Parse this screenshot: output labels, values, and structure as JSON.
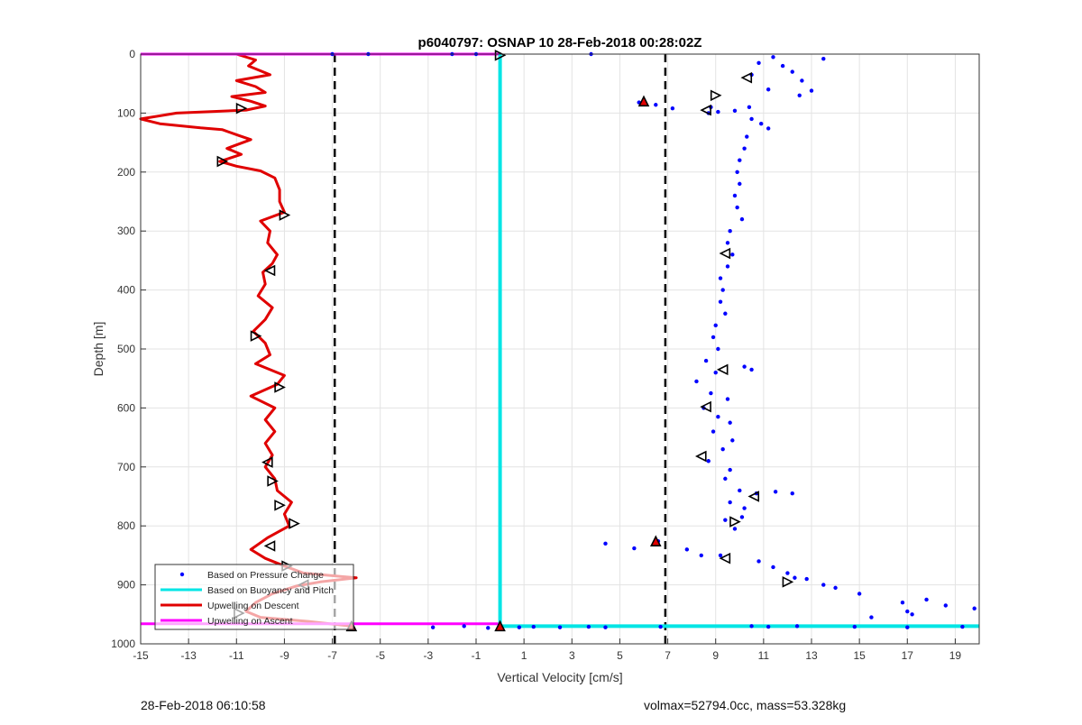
{
  "chart_data": {
    "type": "scatter",
    "title": "p6040797: OSNAP 10 28-Feb-2018 00:28:02Z",
    "xlabel": "Vertical Velocity [cm/s]",
    "ylabel": "Depth [m]",
    "xlim": [
      -15,
      20
    ],
    "ylim": [
      0,
      1000
    ],
    "y_reversed": true,
    "grid": true,
    "x_ticks": [
      "-15",
      "-13",
      "-11",
      "-9",
      "-7",
      "-5",
      "-3",
      "-1",
      "1",
      "3",
      "5",
      "7",
      "9",
      "11",
      "13",
      "15",
      "17",
      "19"
    ],
    "y_ticks": [
      "0",
      "100",
      "200",
      "300",
      "400",
      "500",
      "600",
      "700",
      "800",
      "900",
      "1000"
    ],
    "legend_placement": "bottom-left",
    "legend": [
      {
        "label": "Based on Pressure Change",
        "color": "#0000ff",
        "style": "dots"
      },
      {
        "label": "Based on Buoyancy and Pitch",
        "color": "#00e5e5",
        "style": "line"
      },
      {
        "label": "Upwelling on Descent",
        "color": "#e00000",
        "style": "line"
      },
      {
        "label": "Upwelling on Ascent",
        "color": "#ff00ff",
        "style": "line"
      }
    ],
    "reference_lines_x": [
      -6.9,
      6.9
    ],
    "series": [
      {
        "name": "Based on Pressure Change",
        "color": "#0000ff",
        "points": [
          [
            3.8,
            0
          ],
          [
            11.4,
            5
          ],
          [
            13.5,
            8
          ],
          [
            10.8,
            15
          ],
          [
            11.8,
            20
          ],
          [
            12.2,
            30
          ],
          [
            10.5,
            35
          ],
          [
            12.6,
            45
          ],
          [
            11.2,
            60
          ],
          [
            12.5,
            70
          ],
          [
            13.0,
            62
          ],
          [
            5.8,
            82
          ],
          [
            6.5,
            86
          ],
          [
            7.2,
            92
          ],
          [
            8.8,
            90
          ],
          [
            9.1,
            98
          ],
          [
            9.8,
            96
          ],
          [
            10.4,
            90
          ],
          [
            8.7,
            100
          ],
          [
            10.5,
            110
          ],
          [
            10.9,
            118
          ],
          [
            11.2,
            126
          ],
          [
            10.3,
            140
          ],
          [
            10.2,
            160
          ],
          [
            10.0,
            180
          ],
          [
            9.9,
            200
          ],
          [
            10.0,
            220
          ],
          [
            9.8,
            240
          ],
          [
            9.9,
            260
          ],
          [
            10.1,
            280
          ],
          [
            9.6,
            300
          ],
          [
            9.5,
            320
          ],
          [
            9.7,
            340
          ],
          [
            9.5,
            360
          ],
          [
            9.2,
            380
          ],
          [
            9.3,
            400
          ],
          [
            9.2,
            420
          ],
          [
            9.4,
            440
          ],
          [
            9.0,
            460
          ],
          [
            8.9,
            480
          ],
          [
            9.1,
            500
          ],
          [
            8.6,
            520
          ],
          [
            9.0,
            540
          ],
          [
            10.2,
            530
          ],
          [
            10.5,
            535
          ],
          [
            8.2,
            555
          ],
          [
            8.8,
            575
          ],
          [
            9.5,
            585
          ],
          [
            8.5,
            600
          ],
          [
            9.1,
            615
          ],
          [
            9.6,
            625
          ],
          [
            8.9,
            640
          ],
          [
            9.7,
            655
          ],
          [
            9.3,
            670
          ],
          [
            8.7,
            690
          ],
          [
            9.6,
            705
          ],
          [
            9.4,
            720
          ],
          [
            10.0,
            740
          ],
          [
            10.7,
            745
          ],
          [
            11.5,
            742
          ],
          [
            12.2,
            745
          ],
          [
            9.6,
            760
          ],
          [
            10.2,
            770
          ],
          [
            10.1,
            785
          ],
          [
            9.4,
            790
          ],
          [
            9.8,
            805
          ],
          [
            4.4,
            830
          ],
          [
            5.6,
            838
          ],
          [
            6.6,
            826
          ],
          [
            7.8,
            840
          ],
          [
            8.4,
            850
          ],
          [
            9.2,
            850
          ],
          [
            10.8,
            860
          ],
          [
            11.4,
            870
          ],
          [
            12.0,
            880
          ],
          [
            12.3,
            888
          ],
          [
            12.8,
            890
          ],
          [
            13.5,
            900
          ],
          [
            14.0,
            905
          ],
          [
            15.0,
            915
          ],
          [
            16.8,
            930
          ],
          [
            17.0,
            945
          ],
          [
            17.8,
            925
          ],
          [
            18.6,
            935
          ],
          [
            19.8,
            940
          ],
          [
            15.5,
            955
          ],
          [
            17.2,
            950
          ],
          [
            -2.8,
            972
          ],
          [
            -1.5,
            970
          ],
          [
            -0.5,
            973
          ],
          [
            0.8,
            972
          ],
          [
            1.4,
            971
          ],
          [
            2.5,
            972
          ],
          [
            3.7,
            971
          ],
          [
            4.4,
            972
          ],
          [
            6.7,
            971
          ],
          [
            10.5,
            970
          ],
          [
            11.2,
            971
          ],
          [
            12.4,
            970
          ],
          [
            14.8,
            971
          ],
          [
            17.0,
            972
          ],
          [
            19.3,
            971
          ],
          [
            -7.0,
            0
          ],
          [
            -5.5,
            0
          ],
          [
            -2.0,
            0
          ],
          [
            -1.0,
            0
          ]
        ]
      },
      {
        "name": "Based on Buoyancy and Pitch",
        "color": "#00e5e5",
        "points": [
          [
            0,
            0
          ],
          [
            0,
            970
          ],
          [
            20,
            970
          ]
        ]
      },
      {
        "name": "Upwelling on Descent",
        "color": "#e00000",
        "points": [
          [
            -11,
            0
          ],
          [
            -10.2,
            10
          ],
          [
            -10.5,
            20
          ],
          [
            -9.6,
            35
          ],
          [
            -11.0,
            45
          ],
          [
            -10.2,
            55
          ],
          [
            -9.8,
            65
          ],
          [
            -11.2,
            72
          ],
          [
            -10.4,
            80
          ],
          [
            -9.8,
            88
          ],
          [
            -10.6,
            95
          ],
          [
            -13.5,
            100
          ],
          [
            -15.0,
            110
          ],
          [
            -14.2,
            118
          ],
          [
            -12.5,
            125
          ],
          [
            -11.6,
            128
          ],
          [
            -10.9,
            138
          ],
          [
            -10.4,
            145
          ],
          [
            -11.4,
            160
          ],
          [
            -10.8,
            170
          ],
          [
            -11.7,
            182
          ],
          [
            -11.0,
            190
          ],
          [
            -10.0,
            198
          ],
          [
            -9.4,
            210
          ],
          [
            -9.2,
            230
          ],
          [
            -9.2,
            250
          ],
          [
            -9.0,
            268
          ],
          [
            -10.0,
            283
          ],
          [
            -9.6,
            300
          ],
          [
            -9.7,
            320
          ],
          [
            -9.3,
            340
          ],
          [
            -9.5,
            355
          ],
          [
            -9.9,
            370
          ],
          [
            -9.8,
            390
          ],
          [
            -10.1,
            410
          ],
          [
            -9.5,
            430
          ],
          [
            -9.8,
            450
          ],
          [
            -10.3,
            470
          ],
          [
            -9.8,
            490
          ],
          [
            -9.6,
            510
          ],
          [
            -10.2,
            525
          ],
          [
            -9.0,
            545
          ],
          [
            -9.3,
            560
          ],
          [
            -10.4,
            580
          ],
          [
            -9.4,
            600
          ],
          [
            -9.8,
            620
          ],
          [
            -9.4,
            640
          ],
          [
            -9.8,
            660
          ],
          [
            -9.5,
            680
          ],
          [
            -9.8,
            700
          ],
          [
            -9.4,
            720
          ],
          [
            -9.3,
            740
          ],
          [
            -8.7,
            760
          ],
          [
            -9.0,
            780
          ],
          [
            -8.8,
            800
          ],
          [
            -9.7,
            820
          ],
          [
            -10.4,
            840
          ],
          [
            -9.8,
            855
          ],
          [
            -9.0,
            868
          ],
          [
            -8.2,
            880
          ],
          [
            -6.0,
            888
          ],
          [
            -7.5,
            895
          ],
          [
            -8.5,
            902
          ],
          [
            -9.5,
            915
          ],
          [
            -10.2,
            930
          ],
          [
            -10.6,
            945
          ],
          [
            -10.0,
            955
          ],
          [
            -8.0,
            962
          ],
          [
            -6.2,
            970
          ]
        ]
      },
      {
        "name": "Upwelling on Ascent",
        "color": "#ff00ff",
        "points": [
          [
            -15,
            0
          ],
          [
            0,
            0
          ],
          [
            -15,
            966
          ],
          [
            0,
            966
          ]
        ]
      }
    ],
    "markers": [
      {
        "x": -10.8,
        "y": 92,
        "shape": "right",
        "fill": "none"
      },
      {
        "x": -11.6,
        "y": 182,
        "shape": "right",
        "fill": "none"
      },
      {
        "x": -9.0,
        "y": 273,
        "shape": "right",
        "fill": "none"
      },
      {
        "x": -9.6,
        "y": 367,
        "shape": "left",
        "fill": "none"
      },
      {
        "x": -10.2,
        "y": 478,
        "shape": "right",
        "fill": "none"
      },
      {
        "x": -9.2,
        "y": 565,
        "shape": "right",
        "fill": "none"
      },
      {
        "x": -9.7,
        "y": 692,
        "shape": "left",
        "fill": "none"
      },
      {
        "x": -9.5,
        "y": 724,
        "shape": "right",
        "fill": "none"
      },
      {
        "x": -9.2,
        "y": 765,
        "shape": "right",
        "fill": "none"
      },
      {
        "x": -8.6,
        "y": 796,
        "shape": "right",
        "fill": "none"
      },
      {
        "x": -9.6,
        "y": 834,
        "shape": "left",
        "fill": "none"
      },
      {
        "x": -8.9,
        "y": 868,
        "shape": "right",
        "fill": "none"
      },
      {
        "x": -8.2,
        "y": 900,
        "shape": "left",
        "fill": "none"
      },
      {
        "x": -10.9,
        "y": 948,
        "shape": "right",
        "fill": "none"
      },
      {
        "x": -6.2,
        "y": 970,
        "shape": "up",
        "fill": "#e00000"
      },
      {
        "x": 0,
        "y": 2,
        "shape": "right",
        "fill": "none"
      },
      {
        "x": 0,
        "y": 970,
        "shape": "up",
        "fill": "#e00000"
      },
      {
        "x": 10.3,
        "y": 40,
        "shape": "left",
        "fill": "none"
      },
      {
        "x": 9.0,
        "y": 70,
        "shape": "right",
        "fill": "none"
      },
      {
        "x": 6.0,
        "y": 80,
        "shape": "up",
        "fill": "#e00000"
      },
      {
        "x": 8.6,
        "y": 95,
        "shape": "left",
        "fill": "none"
      },
      {
        "x": 9.4,
        "y": 338,
        "shape": "left",
        "fill": "none"
      },
      {
        "x": 9.3,
        "y": 535,
        "shape": "left",
        "fill": "none"
      },
      {
        "x": 8.6,
        "y": 598,
        "shape": "left",
        "fill": "none"
      },
      {
        "x": 8.4,
        "y": 682,
        "shape": "left",
        "fill": "none"
      },
      {
        "x": 10.6,
        "y": 750,
        "shape": "left",
        "fill": "none"
      },
      {
        "x": 9.8,
        "y": 793,
        "shape": "right",
        "fill": "none"
      },
      {
        "x": 6.5,
        "y": 826,
        "shape": "up",
        "fill": "#e00000"
      },
      {
        "x": 9.4,
        "y": 855,
        "shape": "left",
        "fill": "none"
      },
      {
        "x": 12.0,
        "y": 895,
        "shape": "right",
        "fill": "none"
      }
    ]
  },
  "footer": {
    "left": "28-Feb-2018 06:10:58",
    "right": "volmax=52794.0cc, mass=53.328kg"
  }
}
